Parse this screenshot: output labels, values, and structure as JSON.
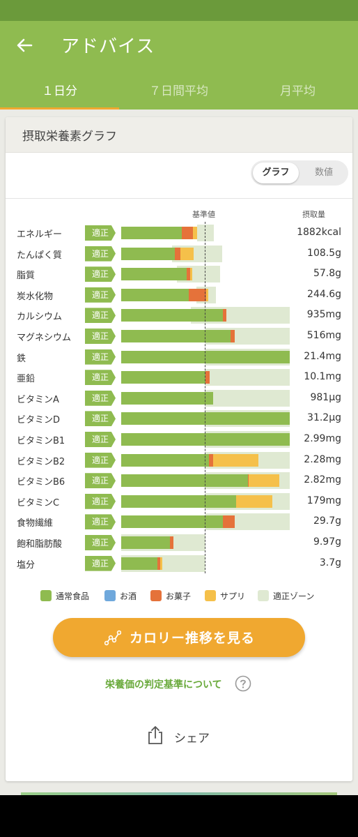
{
  "header": {
    "title": "アドバイス",
    "tabs": [
      {
        "label": "１日分",
        "active": true
      },
      {
        "label": "７日間平均",
        "active": false
      },
      {
        "label": "月平均",
        "active": false
      }
    ]
  },
  "card": {
    "title": "摂取栄養素グラフ",
    "toggle": {
      "graph": "グラフ",
      "numbers": "数値",
      "selected": "グラフ"
    },
    "reference_label": "基準値",
    "intake_label": "摂取量"
  },
  "chart_data": {
    "type": "bar",
    "orientation": "horizontal",
    "stacked": true,
    "reference_label": "基準値",
    "series_names": [
      "通常食品",
      "お酒",
      "お菓子",
      "サプリ"
    ],
    "colors": {
      "food": "#8fbb50",
      "alcohol": "#6fa8dc",
      "snack": "#e5723a",
      "supplement": "#f5c04a",
      "zone": "#dfe9d2"
    },
    "ratio_axis_max": 2.0,
    "rows": [
      {
        "name": "エネルギー",
        "status": "適正",
        "value": "1882kcal",
        "food": 0.72,
        "alcohol": 0,
        "snack": 0.13,
        "supplement": 0.05,
        "zone": [
          0.9,
          1.1
        ]
      },
      {
        "name": "たんぱく質",
        "status": "適正",
        "value": "108.5g",
        "food": 0.64,
        "alcohol": 0,
        "snack": 0.06,
        "supplement": 0.16,
        "zone": [
          0.6,
          1.2
        ]
      },
      {
        "name": "脂質",
        "status": "適正",
        "value": "57.8g",
        "food": 0.78,
        "alcohol": 0,
        "snack": 0.04,
        "supplement": 0.02,
        "zone": [
          0.66,
          1.17
        ]
      },
      {
        "name": "炭水化物",
        "status": "適正",
        "value": "244.6g",
        "food": 0.8,
        "alcohol": 0,
        "snack": 0.21,
        "supplement": 0.02,
        "zone": [
          0.89,
          1.12
        ]
      },
      {
        "name": "カルシウム",
        "status": "適正",
        "value": "935mg",
        "food": 1.21,
        "alcohol": 0,
        "snack": 0.04,
        "supplement": 0,
        "zone": [
          0.83,
          2.0
        ]
      },
      {
        "name": "マグネシウム",
        "status": "適正",
        "value": "516mg",
        "food": 1.3,
        "alcohol": 0,
        "snack": 0.05,
        "supplement": 0,
        "zone": [
          1.0,
          2.0
        ]
      },
      {
        "name": "鉄",
        "status": "適正",
        "value": "21.4mg",
        "food": 2.0,
        "alcohol": 0,
        "snack": 0,
        "supplement": 0,
        "zone": [
          1.0,
          2.0
        ]
      },
      {
        "name": "亜鉛",
        "status": "適正",
        "value": "10.1mg",
        "food": 1.0,
        "alcohol": 0,
        "snack": 0.05,
        "supplement": 0,
        "zone": [
          1.0,
          2.0
        ]
      },
      {
        "name": "ビタミンA",
        "status": "適正",
        "value": "981μg",
        "food": 1.09,
        "alcohol": 0,
        "snack": 0,
        "supplement": 0,
        "zone": [
          1.0,
          2.0
        ]
      },
      {
        "name": "ビタミンD",
        "status": "適正",
        "value": "31.2μg",
        "food": 2.0,
        "alcohol": 0,
        "snack": 0,
        "supplement": 0,
        "zone": [
          1.0,
          2.0
        ]
      },
      {
        "name": "ビタミンB1",
        "status": "適正",
        "value": "2.99mg",
        "food": 2.0,
        "alcohol": 0,
        "snack": 0,
        "supplement": 0,
        "zone": [
          1.0,
          2.0
        ]
      },
      {
        "name": "ビタミンB2",
        "status": "適正",
        "value": "2.28mg",
        "food": 1.04,
        "alcohol": 0,
        "snack": 0.05,
        "supplement": 0.54,
        "zone": [
          1.0,
          2.0
        ]
      },
      {
        "name": "ビタミンB6",
        "status": "適正",
        "value": "2.82mg",
        "food": 1.5,
        "alcohol": 0,
        "snack": 0.01,
        "supplement": 0.37,
        "zone": [
          1.0,
          2.0
        ]
      },
      {
        "name": "ビタミンC",
        "status": "適正",
        "value": "179mg",
        "food": 1.36,
        "alcohol": 0,
        "snack": 0,
        "supplement": 0.43,
        "zone": [
          1.0,
          2.0
        ]
      },
      {
        "name": "食物繊維",
        "status": "適正",
        "value": "29.7g",
        "food": 1.21,
        "alcohol": 0,
        "snack": 0.14,
        "supplement": 0,
        "zone": [
          1.0,
          2.0
        ]
      },
      {
        "name": "飽和脂肪酸",
        "status": "適正",
        "value": "9.97g",
        "food": 0.58,
        "alcohol": 0,
        "snack": 0.04,
        "supplement": 0,
        "zone": [
          0.0,
          1.0
        ]
      },
      {
        "name": "塩分",
        "status": "適正",
        "value": "3.7g",
        "food": 0.43,
        "alcohol": 0,
        "snack": 0.03,
        "supplement": 0.03,
        "zone": [
          0.0,
          1.0
        ]
      }
    ]
  },
  "legend": [
    {
      "label": "通常食品",
      "color": "#8fbb50"
    },
    {
      "label": "お酒",
      "color": "#6fa8dc"
    },
    {
      "label": "お菓子",
      "color": "#e5723a"
    },
    {
      "label": "サプリ",
      "color": "#f5c04a"
    },
    {
      "label": "適正ゾーン",
      "color": "#dfe9d2"
    }
  ],
  "actions": {
    "calorie_button": "カロリー推移を見る",
    "criteria_link": "栄養価の判定基準について",
    "share": "シェア"
  }
}
